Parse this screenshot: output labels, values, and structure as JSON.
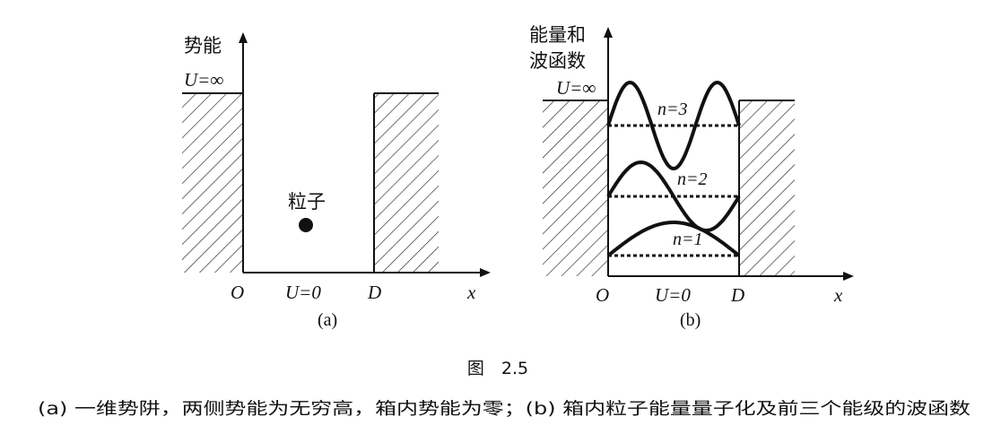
{
  "panel_a": {
    "y_axis_label": "势能",
    "u_inf_label": "U=∞",
    "particle_label": "粒子",
    "origin_label": "O",
    "u_zero_label": "U=0",
    "d_label": "D",
    "x_label": "x",
    "panel_label": "(a)"
  },
  "panel_b": {
    "y_axis_label_line1": "能量和",
    "y_axis_label_line2": "波函数",
    "u_inf_label": "U=∞",
    "levels": [
      {
        "label": "n=1",
        "n": 1
      },
      {
        "label": "n=2",
        "n": 2
      },
      {
        "label": "n=3",
        "n": 3
      }
    ],
    "origin_label": "O",
    "u_zero_label": "U=0",
    "d_label": "D",
    "x_label": "x",
    "panel_label": "(b)"
  },
  "figure": {
    "title": "图　2.5",
    "caption": "(a) 一维势阱，两侧势能为无穷高，箱内势能为零；(b) 箱内粒子能量量子化及前三个能级的波函数"
  }
}
